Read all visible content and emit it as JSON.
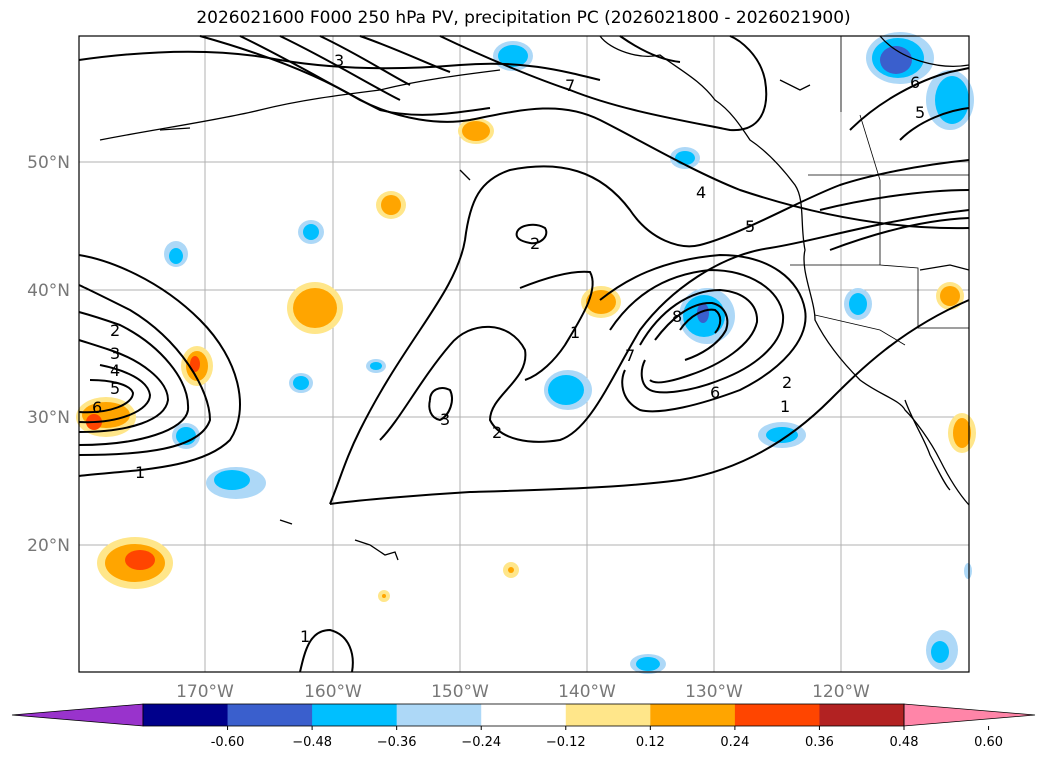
{
  "title": "2026021600 F000 250 hPa PV, precipitation PC (2026021800 - 2026021900)",
  "map": {
    "lat_labels": [
      "50°N",
      "40°N",
      "30°N",
      "20°N"
    ],
    "lon_labels": [
      "170°W",
      "160°W",
      "150°W",
      "140°W",
      "130°W",
      "120°W"
    ],
    "extent": {
      "lon": [
        -180,
        -110
      ],
      "lat": [
        10,
        60
      ]
    },
    "gridlines": true,
    "contour_labels": [
      "1",
      "2",
      "3",
      "4",
      "5",
      "6",
      "7",
      "8",
      "2",
      "3",
      "1",
      "2",
      "1",
      "2",
      "6",
      "7",
      "5",
      "4",
      "3",
      "6",
      "5",
      "1"
    ]
  },
  "colorbar": {
    "ticks": [
      "-0.60",
      "−0.48",
      "−0.36",
      "−0.24",
      "−0.12",
      "0.12",
      "0.24",
      "0.36",
      "0.48",
      "0.60"
    ],
    "colors": [
      "#9933cc",
      "#00008b",
      "#3a5fcd",
      "#00bfff",
      "#add8f7",
      "#ffffff",
      "#ffe68a",
      "#ffa500",
      "#ff4500",
      "#b22222",
      "#ff85a8"
    ],
    "extend": "both"
  }
}
